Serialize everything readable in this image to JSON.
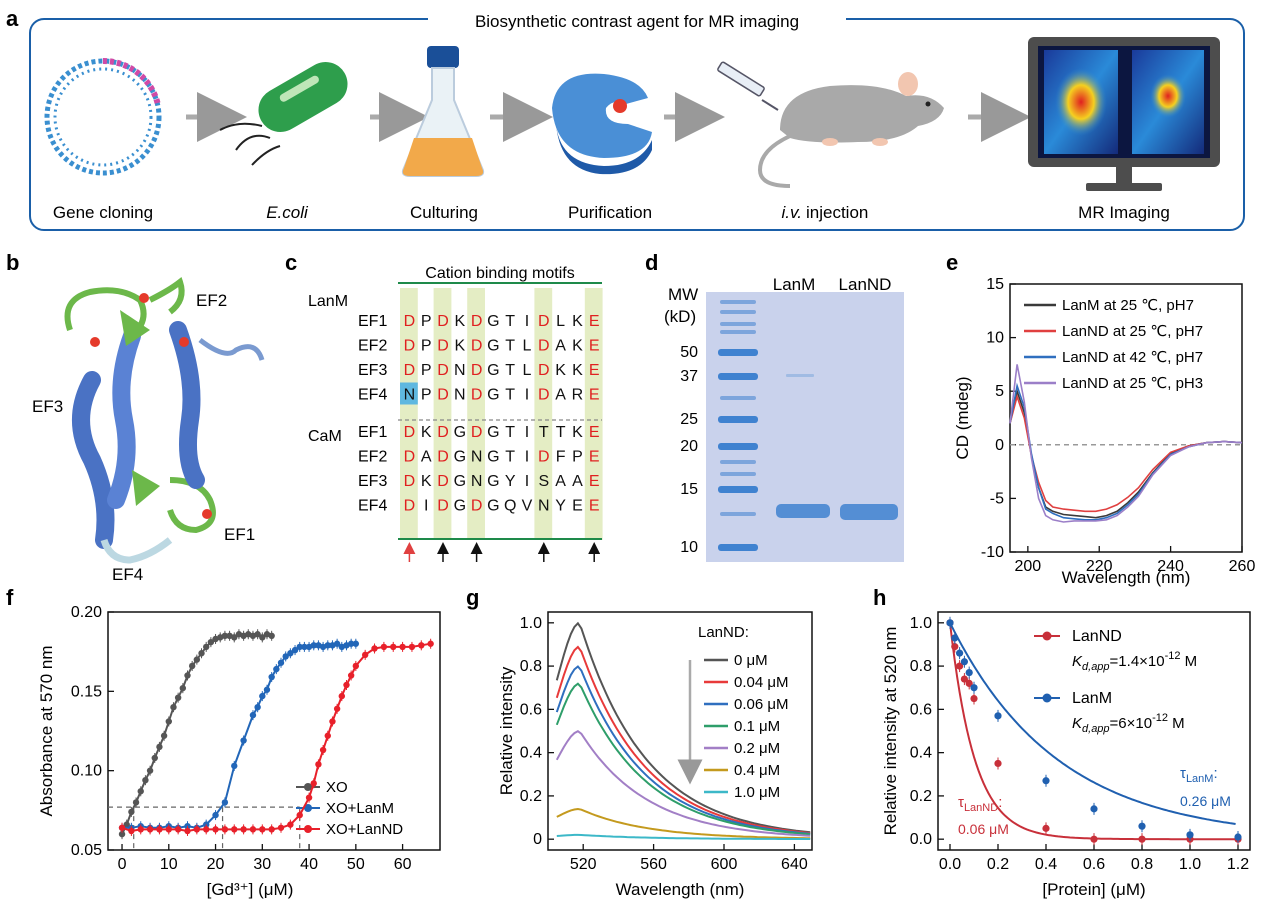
{
  "panel_labels": {
    "a": "a",
    "b": "b",
    "c": "c",
    "d": "d",
    "e": "e",
    "f": "f",
    "g": "g",
    "h": "h"
  },
  "panel_a": {
    "title": "Biosynthetic contrast agent for MR imaging",
    "steps": [
      "Gene cloning",
      "E.coli",
      "Culturing",
      "Purification",
      "i.v.",
      "injection",
      "MR Imaging"
    ],
    "colors": {
      "frame": "#1a5fa8",
      "plasmid_blue": "#3a8fd0",
      "plasmid_pink": "#d04aa6",
      "ecoli": "#2e9e4c",
      "flask_liquid": "#f2a94a",
      "protein": "#4a8fd6",
      "mouse": "#a9a9a9",
      "monitor": "#4d4d4d"
    }
  },
  "panel_b": {
    "loops": [
      "EF1",
      "EF2",
      "EF3",
      "EF4"
    ],
    "colors": {
      "helix": "#4a72c4",
      "loop": "#6cb84a",
      "ion": "#e53a2b"
    }
  },
  "panel_c": {
    "title": "Cation binding motifs",
    "groups": [
      "LanM",
      "CaM"
    ],
    "rows": [
      {
        "name": "EF1",
        "seq": [
          "D",
          "P",
          "D",
          "K",
          "D",
          "G",
          "T",
          "I",
          "D",
          "L",
          "K",
          "E"
        ]
      },
      {
        "name": "EF2",
        "seq": [
          "D",
          "P",
          "D",
          "K",
          "D",
          "G",
          "T",
          "L",
          "D",
          "A",
          "K",
          "E"
        ]
      },
      {
        "name": "EF3",
        "seq": [
          "D",
          "P",
          "D",
          "N",
          "D",
          "G",
          "T",
          "L",
          "D",
          "K",
          "K",
          "E"
        ]
      },
      {
        "name": "EF4",
        "seq": [
          "N",
          "P",
          "D",
          "N",
          "D",
          "G",
          "T",
          "I",
          "D",
          "A",
          "R",
          "E"
        ]
      },
      {
        "name": "EF1",
        "seq": [
          "D",
          "K",
          "D",
          "G",
          "D",
          "G",
          "T",
          "I",
          "T",
          "T",
          "K",
          "E"
        ]
      },
      {
        "name": "EF2",
        "seq": [
          "D",
          "A",
          "D",
          "G",
          "N",
          "G",
          "T",
          "I",
          "D",
          "F",
          "P",
          "E"
        ]
      },
      {
        "name": "EF3",
        "seq": [
          "D",
          "K",
          "D",
          "G",
          "N",
          "G",
          "Y",
          "I",
          "S",
          "A",
          "A",
          "E"
        ]
      },
      {
        "name": "EF4",
        "seq": [
          "D",
          "I",
          "D",
          "G",
          "D",
          "G",
          "Q",
          "V",
          "N",
          "Y",
          "E",
          "E"
        ]
      }
    ],
    "highlight_cols": [
      0,
      2,
      4,
      8,
      11
    ],
    "colors": {
      "column": "#e4edc4",
      "residue": "#e02020",
      "box": "#5fb8e0",
      "line": "#1e8a4a"
    }
  },
  "panel_d": {
    "mw_label": "MW",
    "mw_unit": "(kD)",
    "markers": [
      "50",
      "37",
      "25",
      "20",
      "15",
      "10"
    ],
    "lanes": [
      "LanM",
      "LanND"
    ],
    "colors": {
      "gel": "#c9d2ec",
      "band": "#3f82d0"
    }
  },
  "panel_e": {
    "chart_data": {
      "type": "line",
      "ylabel": "CD (mdeg)",
      "xlabel": "Wavelength (nm)",
      "xlim": [
        195,
        260
      ],
      "ylim": [
        -10,
        15
      ],
      "xticks": [
        200,
        220,
        240,
        260
      ],
      "yticks": [
        15,
        10,
        5,
        0,
        -5,
        -10
      ],
      "x": [
        195,
        197,
        199,
        201,
        203,
        205,
        207,
        210,
        213,
        216,
        219,
        222,
        225,
        228,
        231,
        235,
        240,
        245,
        250,
        255,
        260
      ],
      "series": [
        {
          "name": "LanM at 25 ℃, pH7",
          "color": "#3a3a3a",
          "values": [
            2,
            5,
            3,
            -1,
            -4,
            -5.8,
            -6.2,
            -6.5,
            -6.6,
            -6.7,
            -6.8,
            -6.6,
            -6.2,
            -5.4,
            -4.4,
            -2.6,
            -0.8,
            -0.1,
            0.2,
            0.3,
            0.2
          ]
        },
        {
          "name": "LanND at 25 ℃, pH7",
          "color": "#e04040",
          "values": [
            2,
            4.5,
            2.5,
            -1,
            -3.5,
            -5.2,
            -5.8,
            -6.0,
            -6.1,
            -6.2,
            -6.2,
            -6.0,
            -5.6,
            -4.9,
            -4.0,
            -2.3,
            -0.7,
            -0.1,
            0.2,
            0.3,
            0.2
          ]
        },
        {
          "name": "LanND at 42 ℃, pH7",
          "color": "#2f6fbf",
          "values": [
            2,
            5.5,
            3.5,
            -0.8,
            -4,
            -6.0,
            -6.4,
            -6.8,
            -6.9,
            -7.0,
            -7.0,
            -6.8,
            -6.4,
            -5.6,
            -4.6,
            -2.7,
            -0.9,
            -0.2,
            0.2,
            0.3,
            0.2
          ]
        },
        {
          "name": "LanND at 25 ℃, pH3",
          "color": "#9b7fc8",
          "values": [
            2,
            7.5,
            4,
            -1.2,
            -5,
            -6.6,
            -7.0,
            -7.2,
            -7.1,
            -7.1,
            -7.1,
            -7.0,
            -6.6,
            -5.8,
            -4.8,
            -2.8,
            -1.0,
            -0.2,
            0.2,
            0.3,
            0.2
          ]
        }
      ]
    }
  },
  "panel_f": {
    "chart_data": {
      "type": "scatter",
      "ylabel": "Absorbance at 570 nm",
      "xlabel": "[Gd³⁺] (μM)",
      "xlim": [
        -3,
        68
      ],
      "ylim": [
        0.05,
        0.2
      ],
      "xticks": [
        0,
        10,
        20,
        30,
        40,
        50,
        60
      ],
      "yticks": [
        0.05,
        0.1,
        0.15,
        0.2
      ],
      "reference_y": 0.077,
      "series": [
        {
          "name": "XO",
          "color": "#555555",
          "x": [
            0,
            1,
            2,
            3,
            4,
            5,
            6,
            7,
            8,
            9,
            10,
            11,
            12,
            13,
            14,
            15,
            16,
            17,
            18,
            19,
            20,
            21,
            22,
            23,
            24,
            25,
            26,
            27,
            28,
            29,
            30,
            31,
            32
          ],
          "values": [
            0.06,
            0.066,
            0.074,
            0.08,
            0.087,
            0.094,
            0.1,
            0.108,
            0.115,
            0.122,
            0.131,
            0.14,
            0.146,
            0.152,
            0.16,
            0.166,
            0.17,
            0.174,
            0.178,
            0.181,
            0.183,
            0.184,
            0.185,
            0.185,
            0.184,
            0.186,
            0.185,
            0.186,
            0.185,
            0.186,
            0.184,
            0.186,
            0.185
          ]
        },
        {
          "name": "XO+LanM",
          "color": "#2266b8",
          "x": [
            0,
            2,
            4,
            6,
            8,
            10,
            12,
            14,
            16,
            18,
            20,
            22,
            24,
            26,
            28,
            29,
            30,
            31,
            32,
            33,
            34,
            35,
            36,
            37,
            38,
            39,
            40,
            41,
            42,
            43,
            44,
            45,
            46,
            47,
            48,
            49,
            50
          ],
          "values": [
            0.064,
            0.064,
            0.065,
            0.064,
            0.064,
            0.065,
            0.064,
            0.065,
            0.064,
            0.066,
            0.072,
            0.08,
            0.103,
            0.119,
            0.135,
            0.14,
            0.147,
            0.151,
            0.159,
            0.164,
            0.168,
            0.172,
            0.174,
            0.176,
            0.178,
            0.178,
            0.178,
            0.179,
            0.179,
            0.178,
            0.179,
            0.179,
            0.18,
            0.178,
            0.179,
            0.18,
            0.18
          ]
        },
        {
          "name": "XO+LanND",
          "color": "#e8202a",
          "x": [
            0,
            2,
            4,
            6,
            8,
            10,
            12,
            14,
            16,
            18,
            20,
            22,
            24,
            26,
            28,
            30,
            32,
            34,
            36,
            38,
            40,
            41,
            42,
            43,
            44,
            45,
            46,
            47,
            48,
            49,
            50,
            52,
            54,
            56,
            58,
            60,
            62,
            64,
            66
          ],
          "values": [
            0.064,
            0.062,
            0.063,
            0.063,
            0.063,
            0.063,
            0.063,
            0.062,
            0.063,
            0.063,
            0.063,
            0.063,
            0.063,
            0.063,
            0.063,
            0.063,
            0.063,
            0.064,
            0.066,
            0.072,
            0.083,
            0.092,
            0.104,
            0.113,
            0.122,
            0.131,
            0.139,
            0.147,
            0.154,
            0.16,
            0.166,
            0.173,
            0.177,
            0.178,
            0.178,
            0.178,
            0.178,
            0.179,
            0.18
          ]
        }
      ]
    }
  },
  "panel_g": {
    "chart_data": {
      "type": "line",
      "ylabel": "Relative intensity",
      "xlabel": "Wavelength (nm)",
      "xlim": [
        500,
        650
      ],
      "ylim": [
        -0.05,
        1.05
      ],
      "xticks": [
        520,
        560,
        600,
        640
      ],
      "yticks": [
        0,
        0.2,
        0.4,
        0.6,
        0.8,
        1.0
      ],
      "legend_title": "LanND:",
      "peaks": [
        1.0,
        0.89,
        0.8,
        0.72,
        0.5,
        0.14,
        0.02
      ],
      "series": [
        {
          "name": "0 μM",
          "color": "#555555"
        },
        {
          "name": "0.04 μM",
          "color": "#e83a3a"
        },
        {
          "name": "0.06 μM",
          "color": "#2f6fbf"
        },
        {
          "name": "0.1 μM",
          "color": "#2e9e6a"
        },
        {
          "name": "0.2 μM",
          "color": "#a27fc6"
        },
        {
          "name": "0.4 μM",
          "color": "#c49a1e"
        },
        {
          "name": "1.0 μM",
          "color": "#3cb8c8"
        }
      ]
    }
  },
  "panel_h": {
    "chart_data": {
      "type": "scatter",
      "ylabel": "Relative intensity at 520 nm",
      "xlabel": "[Protein] (μM)",
      "xlim": [
        -0.05,
        1.25
      ],
      "ylim": [
        -0.05,
        1.05
      ],
      "xticks": [
        0,
        0.2,
        0.4,
        0.6,
        0.8,
        1.0,
        1.2
      ],
      "yticks": [
        0,
        0.2,
        0.4,
        0.6,
        0.8,
        1.0
      ],
      "series": [
        {
          "name": "LanND",
          "color": "#c8303a",
          "tau": 0.06,
          "x": [
            0,
            0.02,
            0.04,
            0.06,
            0.08,
            0.1,
            0.2,
            0.4,
            0.6,
            0.8,
            1.0,
            1.2
          ],
          "values": [
            1.0,
            0.89,
            0.8,
            0.74,
            0.72,
            0.65,
            0.35,
            0.05,
            0.0,
            0.0,
            0.0,
            0.0
          ]
        },
        {
          "name": "LanM",
          "color": "#2060b0",
          "tau": 0.26,
          "x": [
            0,
            0.02,
            0.04,
            0.06,
            0.08,
            0.1,
            0.2,
            0.4,
            0.6,
            0.8,
            1.0,
            1.2
          ],
          "values": [
            1.0,
            0.93,
            0.86,
            0.82,
            0.77,
            0.7,
            0.57,
            0.27,
            0.14,
            0.06,
            0.02,
            0.01
          ]
        }
      ],
      "annotations": {
        "lannd_kd_symbol": "K",
        "lannd_kd_sub": "d,app",
        "lannd_kd_value": "=1.4×10",
        "lannd_kd_exp": "-12",
        "lannd_kd_unit": " M",
        "lanm_kd_symbol": "K",
        "lanm_kd_sub": "d,app",
        "lanm_kd_value": "=6×10",
        "lanm_kd_exp": "-12",
        "lanm_kd_unit": " M",
        "tau_lannd_symbol": "τ",
        "tau_lannd_sub": "LanND",
        "tau_lannd_colon": ":",
        "tau_lannd_value": "0.06 μM",
        "tau_lanm_symbol": "τ",
        "tau_lanm_sub": "LanM",
        "tau_lanm_colon": ":",
        "tau_lanm_value": "0.26 μM"
      }
    }
  }
}
